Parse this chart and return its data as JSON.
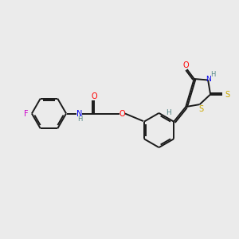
{
  "bg_color": "#ebebeb",
  "bond_color": "#1a1a1a",
  "atom_colors": {
    "F": "#cc00cc",
    "O": "#FF0000",
    "N": "#0000EE",
    "S": "#ccaa00",
    "H": "#558888",
    "C": "#1a1a1a"
  },
  "lw": 1.4,
  "double_sep": 0.055
}
